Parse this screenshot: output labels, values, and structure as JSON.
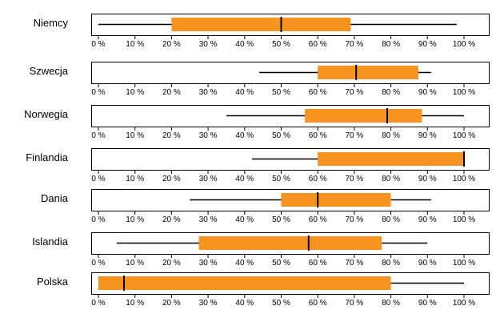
{
  "chart_data": {
    "type": "boxplot",
    "axis": {
      "min": 0,
      "max": 100,
      "ticks": [
        0,
        10,
        20,
        30,
        40,
        50,
        60,
        70,
        80,
        90,
        100
      ],
      "tick_labels": [
        "0 %",
        "10 %",
        "20 %",
        "30 %",
        "40 %",
        "50 %",
        "60 %",
        "70 %",
        "80 %",
        "90 %",
        "100 %"
      ]
    },
    "colors": {
      "box": "#f7931e",
      "line": "#000000",
      "frame": "#000000"
    },
    "rows": [
      {
        "label": "Niemcy",
        "whisker_low": 0,
        "q1": 20,
        "median": 50,
        "q3": 69,
        "whisker_high": 98
      },
      {
        "label": "Szwecja",
        "whisker_low": 44,
        "q1": 60,
        "median": 70.5,
        "q3": 87.5,
        "whisker_high": 91
      },
      {
        "label": "Norwegia",
        "whisker_low": 35,
        "q1": 56.5,
        "median": 79,
        "q3": 88.5,
        "whisker_high": 100
      },
      {
        "label": "Finlandia",
        "whisker_low": 42,
        "q1": 60,
        "median": 100,
        "q3": 100,
        "whisker_high": 100
      },
      {
        "label": "Dania",
        "whisker_low": 25,
        "q1": 50,
        "median": 60,
        "q3": 80,
        "whisker_high": 91
      },
      {
        "label": "Islandia",
        "whisker_low": 5,
        "q1": 27.5,
        "median": 57.5,
        "q3": 77.5,
        "whisker_high": 90
      },
      {
        "label": "Polska",
        "whisker_low": 0,
        "q1": 0,
        "median": 7,
        "q3": 80,
        "whisker_high": 100
      }
    ]
  }
}
